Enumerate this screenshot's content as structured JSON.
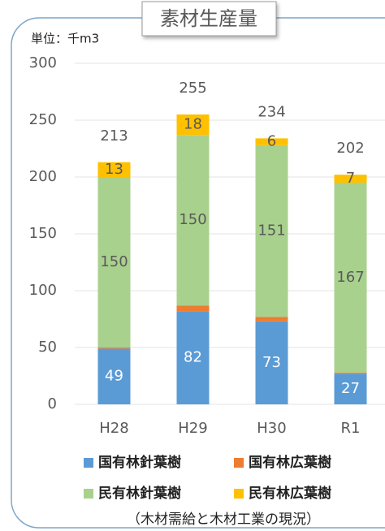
{
  "chart_data": {
    "type": "stacked_bar",
    "title": "素材生産量",
    "unit_label": "単位：千m3",
    "source": "（木材需給と木材工業の現況）",
    "categories": [
      "H28",
      "H29",
      "H30",
      "R1"
    ],
    "series": [
      {
        "name": "国有林針葉樹",
        "color": "#5b9bd5",
        "values": [
          49,
          82,
          73,
          27
        ]
      },
      {
        "name": "国有林広葉樹",
        "color": "#ed7d31",
        "values": [
          1,
          5,
          4,
          1
        ]
      },
      {
        "name": "民有林針葉樹",
        "color": "#a9d18e",
        "values": [
          150,
          150,
          151,
          167
        ]
      },
      {
        "name": "民有林広葉樹",
        "color": "#ffc000",
        "values": [
          13,
          18,
          6,
          7
        ]
      }
    ],
    "totals": [
      213,
      255,
      234,
      202
    ],
    "ylim": [
      0,
      300
    ],
    "yticks": [
      0,
      50,
      100,
      150,
      200,
      250,
      300
    ],
    "grid": true
  }
}
